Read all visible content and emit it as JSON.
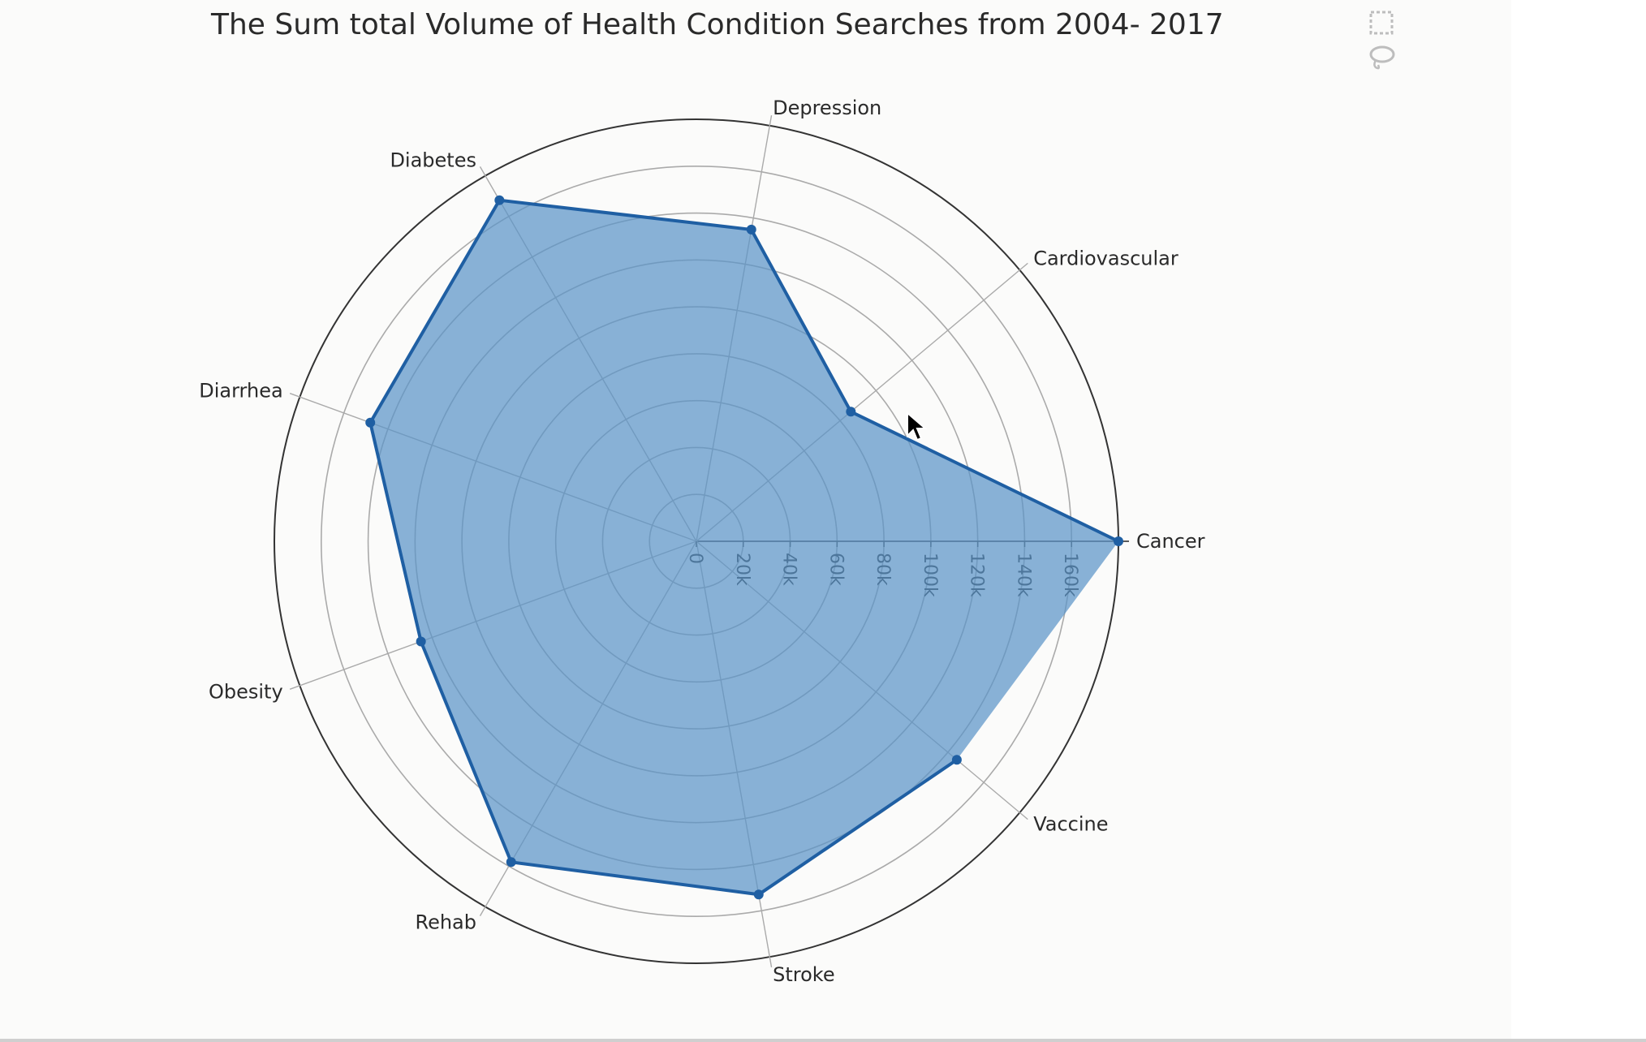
{
  "chart_data": {
    "type": "radar",
    "title": "The Sum total Volume of Health Condition Searches from 2004- 2017",
    "categories": [
      "Cancer",
      "Cardiovascular",
      "Depression",
      "Diabetes",
      "Diarrhea",
      "Obesity",
      "Rehab",
      "Stroke",
      "Vaccine"
    ],
    "series": [
      {
        "values": [
          180000,
          86000,
          135000,
          168000,
          148000,
          125000,
          158000,
          153000,
          145000
        ]
      }
    ],
    "radial_ticks": [
      "0",
      "20k",
      "40k",
      "60k",
      "80k",
      "100k",
      "120k",
      "140k",
      "160k"
    ],
    "radial_range": [
      0,
      180000
    ],
    "grid": true,
    "colors": {
      "line": "#1f5fa3",
      "fill": "#5b94c8",
      "grid": "#aaaaaa",
      "outer_ring": "#333333"
    }
  },
  "toolbar": {
    "buttons": [
      {
        "name": "box-select-icon"
      },
      {
        "name": "lasso-select-icon"
      }
    ]
  }
}
